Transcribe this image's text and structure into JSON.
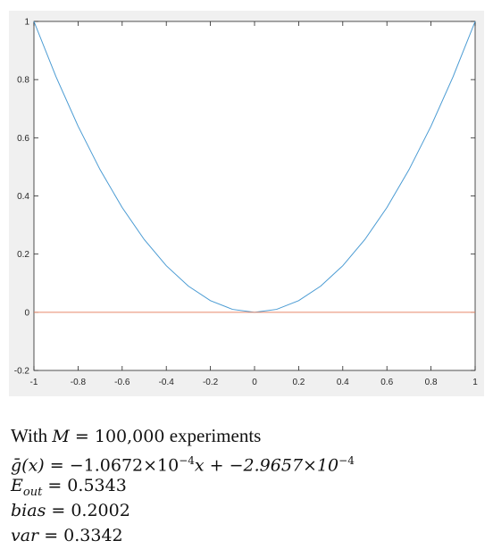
{
  "chart_data": {
    "type": "line",
    "x": [
      -1,
      -0.9,
      -0.8,
      -0.7,
      -0.6,
      -0.5,
      -0.4,
      -0.3,
      -0.2,
      -0.1,
      0,
      0.1,
      0.2,
      0.3,
      0.4,
      0.5,
      0.6,
      0.7,
      0.8,
      0.9,
      1
    ],
    "series": [
      {
        "color": "#4a9bd3",
        "values": [
          1,
          0.81,
          0.64,
          0.49,
          0.36,
          0.25,
          0.16,
          0.09,
          0.04,
          0.01,
          0,
          0.01,
          0.04,
          0.09,
          0.16,
          0.25,
          0.36,
          0.49,
          0.64,
          0.81,
          1
        ]
      },
      {
        "color": "#e8896a",
        "values": [
          0.0,
          0.0,
          0.0,
          0.0,
          0.0,
          0.0,
          0.0,
          0.0,
          0.0,
          0.0,
          0.0,
          0.0,
          0.0,
          0.0,
          0.0,
          0.0,
          0.0,
          0.0,
          0.0,
          0.0,
          0.0
        ]
      }
    ],
    "xlim": [
      -1,
      1
    ],
    "ylim": [
      -0.2,
      1
    ],
    "xticks": [
      -1,
      -0.8,
      -0.6,
      -0.4,
      -0.2,
      0,
      0.2,
      0.4,
      0.6,
      0.8,
      1
    ],
    "xtick_labels": [
      "-1",
      "-0.8",
      "-0.6",
      "-0.4",
      "-0.2",
      "0",
      "0.2",
      "0.4",
      "0.6",
      "0.8",
      "1"
    ],
    "yticks": [
      -0.2,
      0,
      0.2,
      0.4,
      0.6,
      0.8,
      1
    ],
    "ytick_labels": [
      "-0.2",
      "0",
      "0.2",
      "0.4",
      "0.6",
      "0.8",
      "1"
    ],
    "grid": false,
    "title": "",
    "xlabel": "",
    "ylabel": ""
  },
  "caption": {
    "line1_text": "With ",
    "line1_M": "M",
    "line1_eq": " = 100,000",
    "line1_rest": " experiments",
    "line2_g": "ḡ",
    "line2_x": "(x)",
    "line2_eq": " = −1.0672×10",
    "line2_exp1": "−4",
    "line2_mid": "x + −2.9657×10",
    "line2_exp2": "−4",
    "line3_E": "E",
    "line3_sub": "out",
    "line3_val": " = 0.5343",
    "line4_name": "bias",
    "line4_val": " = 0.2002",
    "line5_name": "var",
    "line5_val": " = 0.3342"
  }
}
